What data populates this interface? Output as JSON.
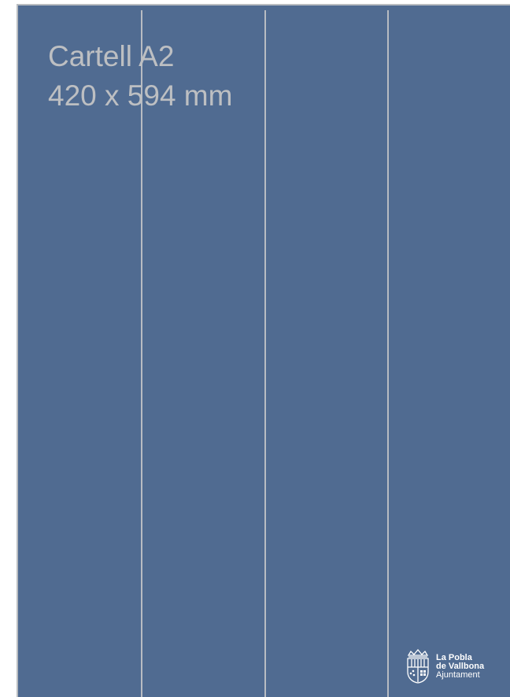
{
  "poster": {
    "title_line1": "Cartell A2",
    "title_line2": "420 x 594 mm",
    "background_color": "#506b91",
    "guide_color": "#b8bcc2"
  },
  "logo": {
    "line1": "La Pobla",
    "line2": "de Vallbona",
    "line3": "Ajuntament",
    "icon": "coat-of-arms-icon"
  }
}
